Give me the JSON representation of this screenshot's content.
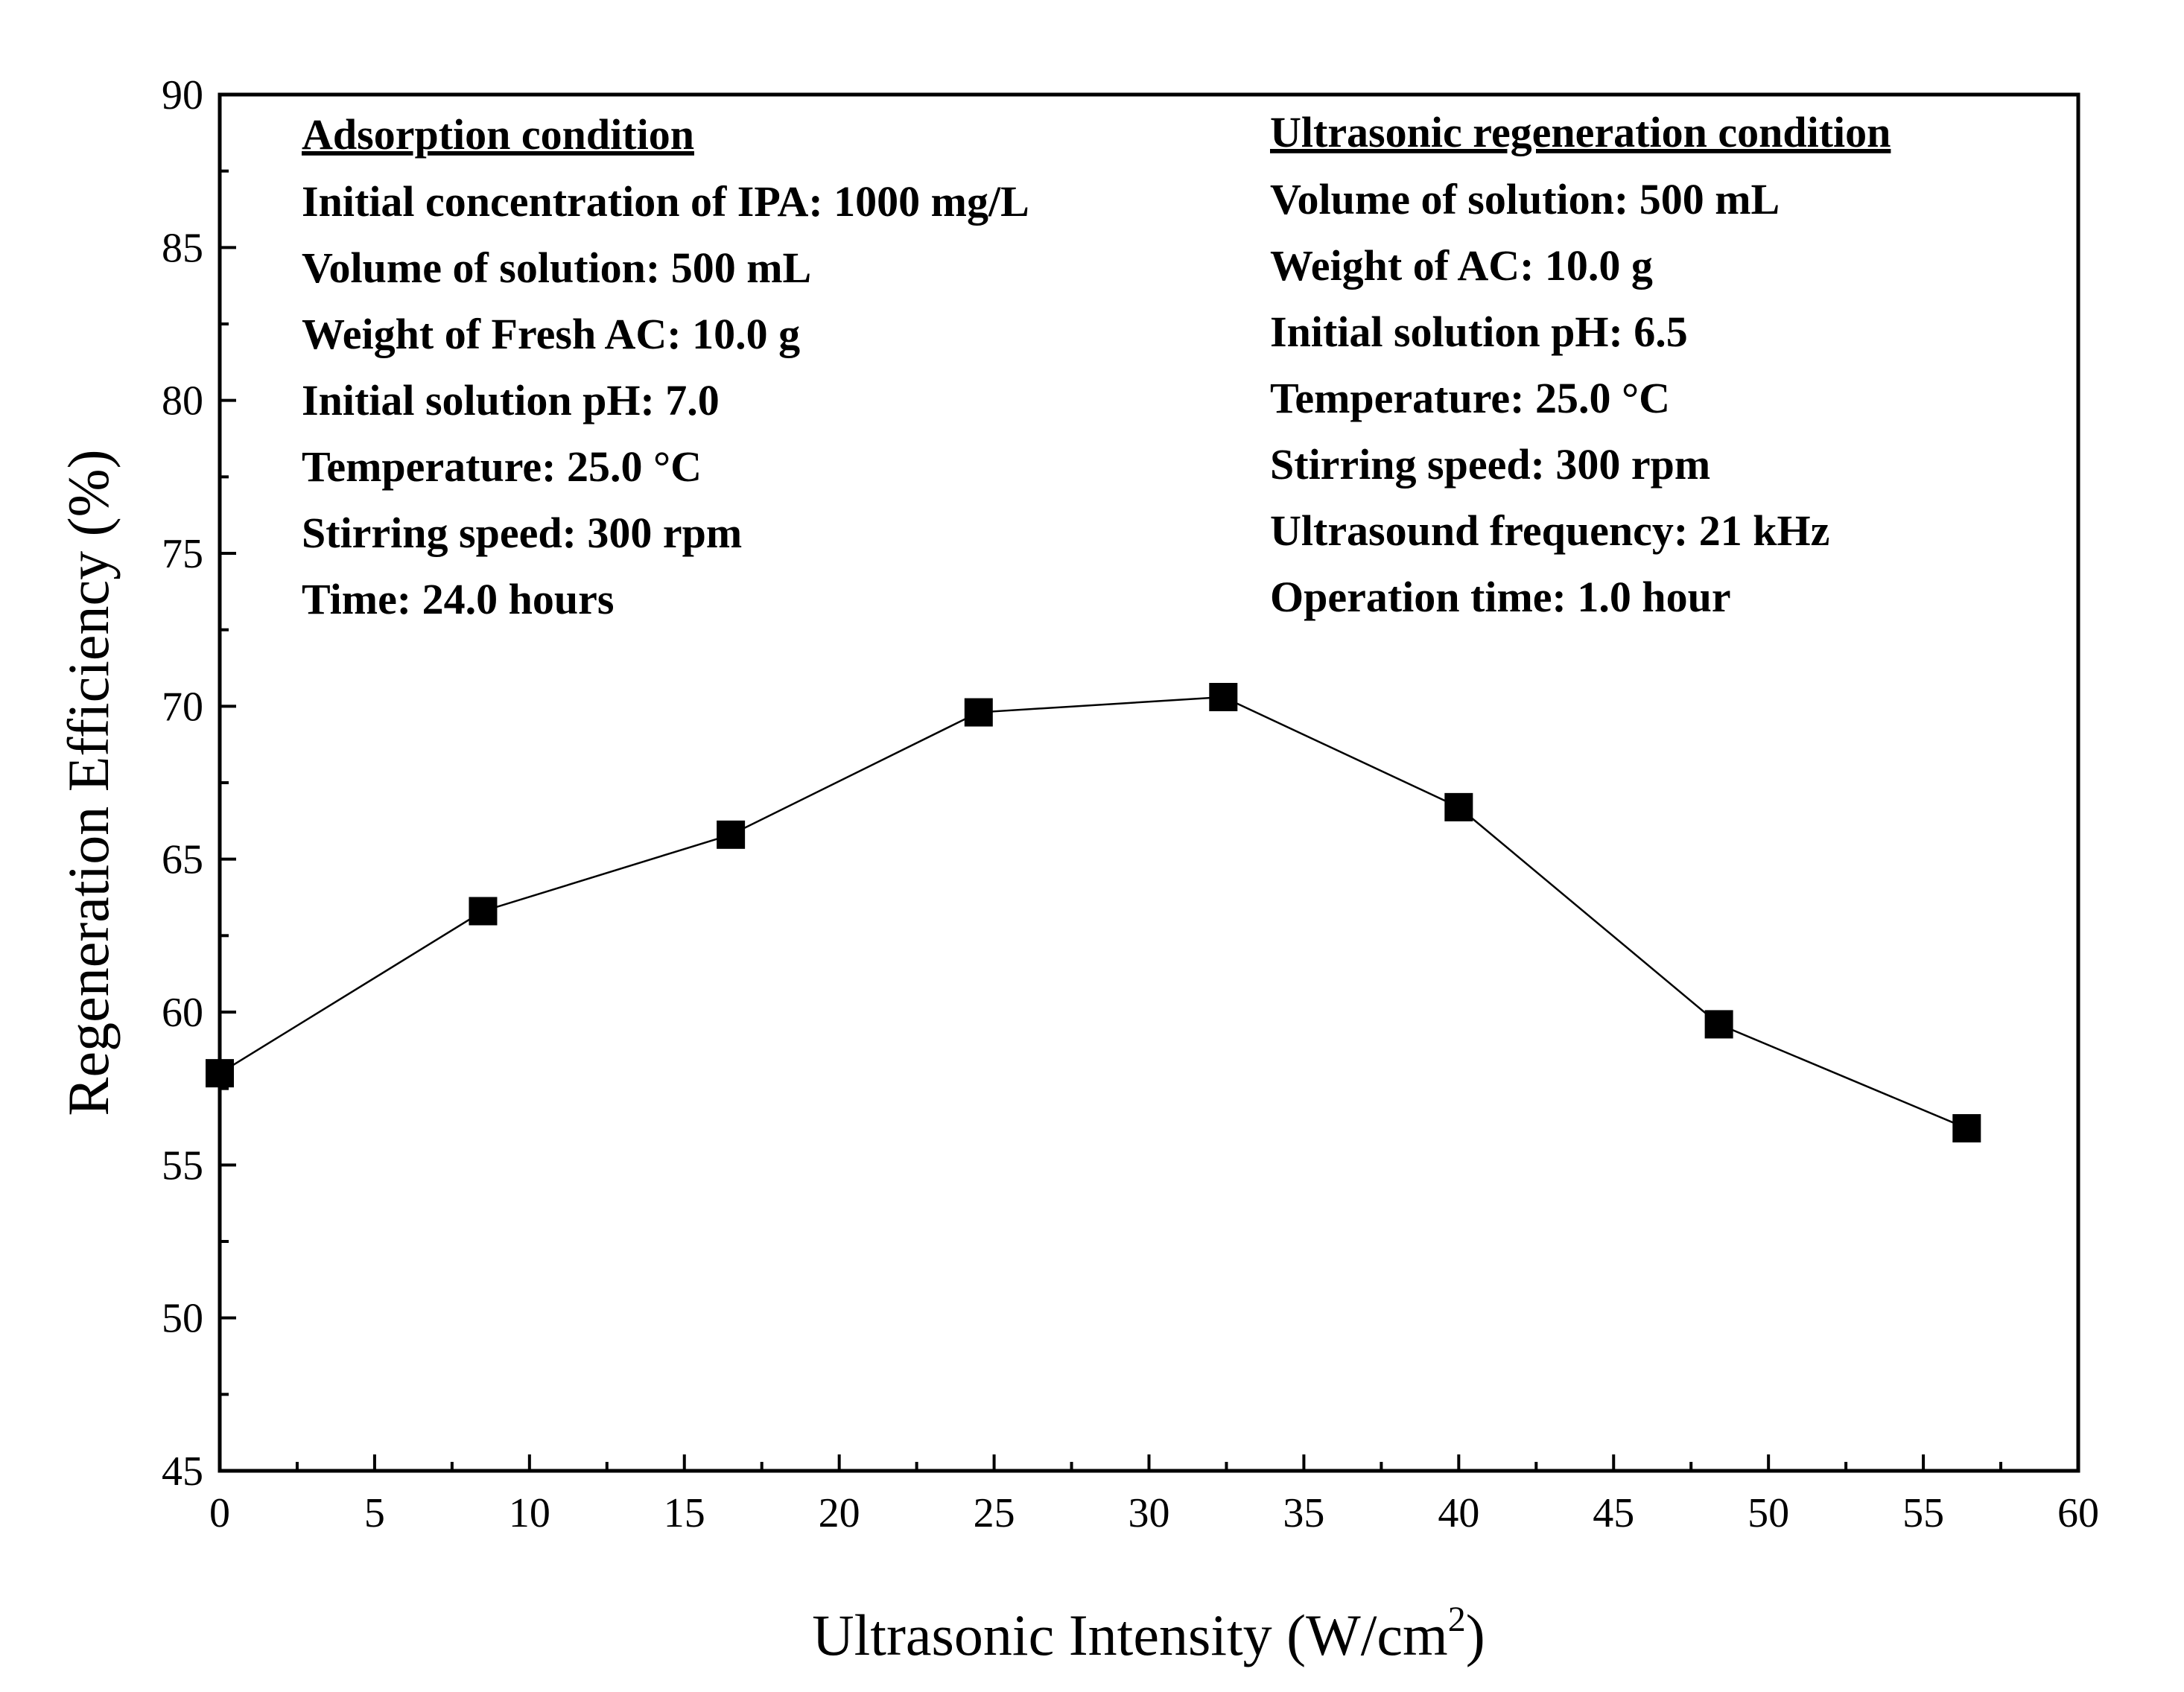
{
  "chart_data": {
    "type": "line",
    "title": "",
    "xlabel": "Ultrasonic Intensity (W/cm",
    "xlabel_superscript": "2",
    "xlabel_suffix": ")",
    "ylabel": "Regeneration Efficiency (%)",
    "xlim": [
      0,
      60
    ],
    "ylim": [
      45,
      90
    ],
    "x_ticks": [
      "0",
      "5",
      "10",
      "15",
      "20",
      "25",
      "30",
      "35",
      "40",
      "45",
      "50",
      "55",
      "60"
    ],
    "y_ticks": [
      "45",
      "50",
      "55",
      "60",
      "65",
      "70",
      "75",
      "80",
      "85",
      "90"
    ],
    "grid": false,
    "series": [
      {
        "name": "Regeneration efficiency",
        "marker": "square",
        "color": "#000000",
        "x": [
          0,
          8.5,
          16.5,
          24.5,
          32.4,
          40.0,
          48.4,
          56.4
        ],
        "y": [
          58.0,
          63.3,
          65.8,
          69.8,
          70.3,
          66.7,
          59.6,
          56.2
        ]
      }
    ],
    "annotations": {
      "left": {
        "heading": "Adsorption condition",
        "lines": [
          "Initial concentration of IPA: 1000 mg/L",
          "Volume of solution: 500 mL",
          "Weight of  Fresh AC: 10.0 g",
          "Initial solution pH: 7.0",
          "Temperature: 25.0 °C",
          "Stirring speed: 300 rpm",
          "Time: 24.0 hours"
        ]
      },
      "right": {
        "heading": "Ultrasonic regeneration condition",
        "lines": [
          "Volume of solution: 500 mL",
          "Weight of  AC: 10.0 g",
          "Initial solution pH: 6.5",
          "Temperature: 25.0 °C",
          "Stirring speed: 300 rpm",
          "Ultrasound frequency: 21 kHz",
          "Operation time: 1.0 hour"
        ]
      }
    }
  }
}
